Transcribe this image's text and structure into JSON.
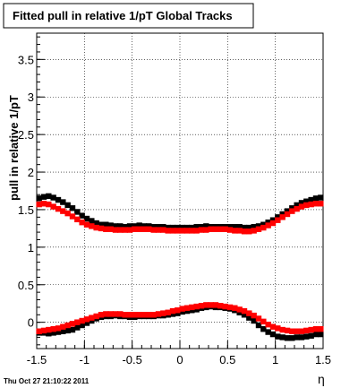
{
  "chart_data": {
    "type": "scatter",
    "title": "Fitted pull in relative 1/pT  Global Tracks",
    "xlabel": "η",
    "ylabel": "pull in relative 1/pT",
    "xlim": [
      -1.5,
      1.5
    ],
    "ylim": [
      -0.35,
      3.85
    ],
    "grid": true,
    "x_ticks": [
      -1.5,
      -1,
      -0.5,
      0,
      0.5,
      1,
      1.5
    ],
    "x_tick_labels": [
      "-1.5",
      "-1",
      "-0.5",
      "0",
      "0.5",
      "1",
      "1.5"
    ],
    "y_ticks": [
      0,
      0.5,
      1,
      1.5,
      2,
      2.5,
      3,
      3.5
    ],
    "y_tick_labels": [
      "0",
      "0.5",
      "1",
      "1.5",
      "2",
      "2.5",
      "3",
      "3.5"
    ],
    "timestamp": "Thu Oct 27 21:10:22 2011",
    "x": [
      -1.475,
      -1.425,
      -1.375,
      -1.325,
      -1.275,
      -1.225,
      -1.175,
      -1.125,
      -1.075,
      -1.025,
      -0.975,
      -0.925,
      -0.875,
      -0.825,
      -0.775,
      -0.725,
      -0.675,
      -0.625,
      -0.575,
      -0.525,
      -0.475,
      -0.425,
      -0.375,
      -0.325,
      -0.275,
      -0.225,
      -0.175,
      -0.125,
      -0.075,
      -0.025,
      0.025,
      0.075,
      0.125,
      0.175,
      0.225,
      0.275,
      0.325,
      0.375,
      0.425,
      0.475,
      0.525,
      0.575,
      0.625,
      0.675,
      0.725,
      0.775,
      0.825,
      0.875,
      0.925,
      0.975,
      1.025,
      1.075,
      1.125,
      1.175,
      1.225,
      1.275,
      1.325,
      1.375,
      1.425,
      1.475
    ],
    "series": [
      {
        "color": "#000000",
        "values": [
          1.65,
          1.67,
          1.68,
          1.66,
          1.63,
          1.6,
          1.56,
          1.52,
          1.47,
          1.42,
          1.38,
          1.35,
          1.32,
          1.3,
          1.3,
          1.29,
          1.28,
          1.28,
          1.27,
          1.28,
          1.28,
          1.29,
          1.28,
          1.28,
          1.27,
          1.27,
          1.27,
          1.26,
          1.26,
          1.26,
          1.26,
          1.26,
          1.26,
          1.27,
          1.27,
          1.28,
          1.27,
          1.27,
          1.27,
          1.27,
          1.27,
          1.27,
          1.27,
          1.26,
          1.26,
          1.27,
          1.28,
          1.3,
          1.33,
          1.36,
          1.4,
          1.44,
          1.48,
          1.52,
          1.56,
          1.59,
          1.61,
          1.63,
          1.65,
          1.66
        ]
      },
      {
        "color": "#ff0000",
        "values": [
          1.57,
          1.58,
          1.57,
          1.54,
          1.51,
          1.48,
          1.45,
          1.41,
          1.37,
          1.33,
          1.3,
          1.28,
          1.26,
          1.25,
          1.24,
          1.24,
          1.23,
          1.23,
          1.23,
          1.23,
          1.24,
          1.24,
          1.24,
          1.24,
          1.23,
          1.23,
          1.23,
          1.22,
          1.22,
          1.22,
          1.22,
          1.22,
          1.22,
          1.22,
          1.23,
          1.23,
          1.24,
          1.24,
          1.24,
          1.24,
          1.23,
          1.22,
          1.22,
          1.21,
          1.21,
          1.22,
          1.24,
          1.26,
          1.29,
          1.32,
          1.36,
          1.4,
          1.44,
          1.48,
          1.51,
          1.54,
          1.56,
          1.57,
          1.58,
          1.58
        ]
      },
      {
        "color": "#000000",
        "values": [
          -0.14,
          -0.14,
          -0.15,
          -0.14,
          -0.13,
          -0.12,
          -0.11,
          -0.1,
          -0.07,
          -0.04,
          -0.01,
          0.02,
          0.05,
          0.07,
          0.08,
          0.08,
          0.09,
          0.08,
          0.08,
          0.07,
          0.07,
          0.08,
          0.08,
          0.08,
          0.08,
          0.09,
          0.09,
          0.1,
          0.11,
          0.12,
          0.14,
          0.15,
          0.16,
          0.17,
          0.19,
          0.2,
          0.21,
          0.2,
          0.2,
          0.19,
          0.18,
          0.16,
          0.13,
          0.1,
          0.06,
          0.02,
          -0.04,
          -0.09,
          -0.13,
          -0.16,
          -0.19,
          -0.2,
          -0.21,
          -0.21,
          -0.2,
          -0.2,
          -0.19,
          -0.18,
          -0.16,
          -0.16
        ]
      },
      {
        "color": "#ff0000",
        "values": [
          -0.12,
          -0.11,
          -0.1,
          -0.09,
          -0.08,
          -0.06,
          -0.04,
          -0.02,
          0.0,
          0.02,
          0.04,
          0.06,
          0.08,
          0.1,
          0.11,
          0.11,
          0.11,
          0.11,
          0.1,
          0.1,
          0.1,
          0.1,
          0.1,
          0.1,
          0.1,
          0.11,
          0.12,
          0.13,
          0.15,
          0.16,
          0.18,
          0.19,
          0.2,
          0.21,
          0.22,
          0.23,
          0.23,
          0.23,
          0.22,
          0.21,
          0.2,
          0.19,
          0.17,
          0.15,
          0.12,
          0.09,
          0.05,
          0.01,
          -0.03,
          -0.06,
          -0.08,
          -0.1,
          -0.11,
          -0.12,
          -0.12,
          -0.12,
          -0.11,
          -0.1,
          -0.09,
          -0.09
        ]
      }
    ]
  }
}
